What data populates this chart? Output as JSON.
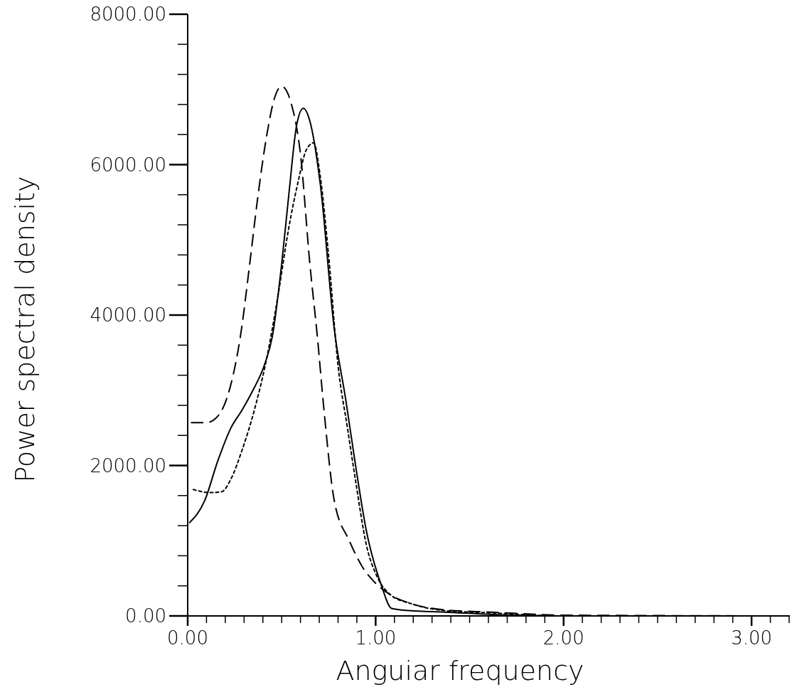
{
  "chart_data": {
    "type": "line",
    "xlabel": "Anguiar frequency",
    "ylabel": "Power spectral density",
    "xlim": [
      0,
      3.2
    ],
    "ylim": [
      0,
      8000
    ],
    "xticks": [
      {
        "value": 0,
        "label": "0.00"
      },
      {
        "value": 0.1,
        "label": null
      },
      {
        "value": 0.2,
        "label": null
      },
      {
        "value": 0.3,
        "label": null
      },
      {
        "value": 0.4,
        "label": null
      },
      {
        "value": 0.5,
        "label": null
      },
      {
        "value": 0.6,
        "label": null
      },
      {
        "value": 0.7,
        "label": null
      },
      {
        "value": 0.8,
        "label": null
      },
      {
        "value": 0.9,
        "label": null
      },
      {
        "value": 1,
        "label": "1.00"
      },
      {
        "value": 1.1,
        "label": null
      },
      {
        "value": 1.2,
        "label": null
      },
      {
        "value": 1.3,
        "label": null
      },
      {
        "value": 1.4,
        "label": null
      },
      {
        "value": 1.5,
        "label": null
      },
      {
        "value": 1.6,
        "label": null
      },
      {
        "value": 1.7,
        "label": null
      },
      {
        "value": 1.8,
        "label": null
      },
      {
        "value": 1.9,
        "label": null
      },
      {
        "value": 2,
        "label": "2.00"
      },
      {
        "value": 2.1,
        "label": null
      },
      {
        "value": 2.2,
        "label": null
      },
      {
        "value": 2.3,
        "label": null
      },
      {
        "value": 2.4,
        "label": null
      },
      {
        "value": 2.5,
        "label": null
      },
      {
        "value": 2.6,
        "label": null
      },
      {
        "value": 2.7,
        "label": null
      },
      {
        "value": 2.8,
        "label": null
      },
      {
        "value": 2.9,
        "label": null
      },
      {
        "value": 3,
        "label": "3.00"
      },
      {
        "value": 3.1,
        "label": null
      },
      {
        "value": 3.2,
        "label": null
      }
    ],
    "yticks": [
      {
        "value": 0,
        "label": "0.00"
      },
      {
        "value": 400,
        "label": null
      },
      {
        "value": 800,
        "label": null
      },
      {
        "value": 1200,
        "label": null
      },
      {
        "value": 1600,
        "label": null
      },
      {
        "value": 2000,
        "label": "2000.00"
      },
      {
        "value": 2400,
        "label": null
      },
      {
        "value": 2800,
        "label": null
      },
      {
        "value": 3200,
        "label": null
      },
      {
        "value": 3600,
        "label": null
      },
      {
        "value": 4000,
        "label": "4000.00"
      },
      {
        "value": 4400,
        "label": null
      },
      {
        "value": 4800,
        "label": null
      },
      {
        "value": 5200,
        "label": null
      },
      {
        "value": 5600,
        "label": null
      },
      {
        "value": 6000,
        "label": "6000.00"
      },
      {
        "value": 6400,
        "label": null
      },
      {
        "value": 6800,
        "label": null
      },
      {
        "value": 7200,
        "label": null
      },
      {
        "value": 7600,
        "label": null
      },
      {
        "value": 8000,
        "label": "8000.00"
      }
    ],
    "grid": false,
    "series": [
      {
        "color": "#000000",
        "line_style": "solid",
        "x": [
          0.01,
          0.09,
          0.16,
          0.23,
          0.29,
          0.345,
          0.41,
          0.45,
          0.5,
          0.54,
          0.58,
          0.615,
          0.65,
          0.705,
          0.78,
          0.84,
          0.895,
          0.95,
          1.03,
          1.085,
          1.18,
          1.37,
          1.62,
          2.0,
          3.2
        ],
        "values": [
          1240,
          1530,
          2060,
          2500,
          2740,
          2990,
          3350,
          3710,
          4680,
          5650,
          6530,
          6750,
          6580,
          5750,
          3810,
          2890,
          1970,
          1140,
          410,
          100,
          70,
          50,
          20,
          0,
          0
        ]
      },
      {
        "color": "#000000",
        "line_style": "dashed",
        "x": [
          0.02,
          0.1,
          0.165,
          0.23,
          0.28,
          0.33,
          0.37,
          0.42,
          0.46,
          0.5,
          0.55,
          0.6,
          0.65,
          0.69,
          0.725,
          0.78,
          0.86,
          0.935,
          0.99,
          1.085,
          1.18,
          1.37,
          1.62,
          2.0,
          3.2
        ],
        "values": [
          2570,
          2570,
          2670,
          3080,
          3710,
          4680,
          5510,
          6380,
          6870,
          7040,
          6820,
          6140,
          4680,
          3710,
          2740,
          1530,
          1000,
          630,
          460,
          270,
          170,
          80,
          50,
          10,
          0
        ]
      },
      {
        "color": "#000000",
        "line_style": "dotted",
        "x": [
          0.03,
          0.12,
          0.18,
          0.23,
          0.29,
          0.355,
          0.42,
          0.48,
          0.535,
          0.59,
          0.63,
          0.67,
          0.705,
          0.75,
          0.8,
          0.85,
          0.895,
          0.95,
          1.01,
          1.085,
          1.18,
          1.37,
          1.62,
          2.0,
          3.2
        ],
        "values": [
          1680,
          1640,
          1650,
          1820,
          2210,
          2740,
          3420,
          4250,
          5120,
          5800,
          6190,
          6290,
          5850,
          4780,
          3330,
          2500,
          1770,
          950,
          510,
          270,
          170,
          70,
          40,
          0,
          0
        ]
      }
    ]
  }
}
